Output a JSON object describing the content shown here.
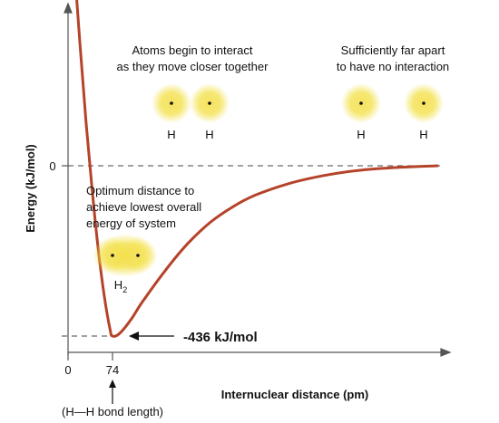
{
  "chart_data": {
    "type": "line",
    "xlabel": "Internuclear distance (pm)",
    "ylabel": "Energy (kJ/mol)",
    "x_ticks": [
      "0",
      "74"
    ],
    "y_ticks": [
      "0"
    ],
    "minimum": {
      "x": 74,
      "y": -436,
      "label": "-436 kJ/mol"
    },
    "bond_length_label": "(H—H bond length)",
    "series": [
      {
        "x": [
          5,
          10,
          20,
          30,
          40,
          50,
          60,
          70,
          74,
          80,
          90,
          100,
          120,
          140,
          160,
          180,
          200,
          230,
          260,
          290,
          320,
          360
        ],
        "y": [
          610,
          520,
          310,
          110,
          -60,
          -210,
          -330,
          -420,
          -436,
          -430,
          -395,
          -350,
          -270,
          -200,
          -145,
          -105,
          -75,
          -45,
          -25,
          -12,
          -5,
          0
        ]
      }
    ],
    "xlim": [
      0,
      370
    ],
    "ylim": [
      -480,
      620
    ],
    "grid": false,
    "legend": "none"
  },
  "annotations": {
    "interact": [
      "Atoms begin to interact",
      "as they move closer together"
    ],
    "far": [
      "Sufficiently far apart",
      "to have no interaction"
    ],
    "optimum": [
      "Optimum distance to",
      "achieve lowest overall",
      "energy of system"
    ],
    "atom_h": "H",
    "molecule": "H",
    "molecule_sub": "2"
  },
  "colors": {
    "curve": "#b5432a",
    "atom_glow": "#f2de3a",
    "axis": "#555555"
  }
}
